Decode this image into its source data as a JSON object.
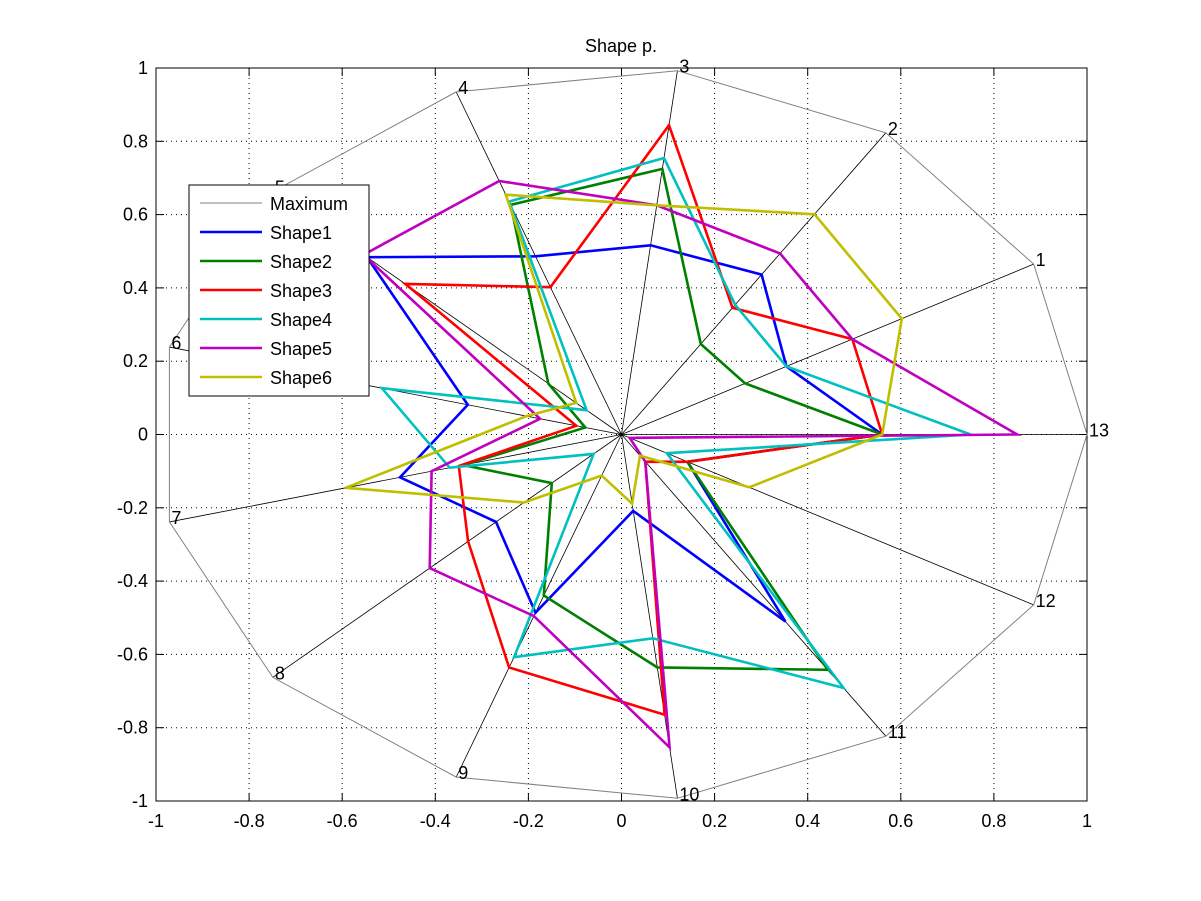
{
  "chart_data": {
    "type": "radar",
    "title": "Shape p.",
    "xlim": [
      -1,
      1
    ],
    "ylim": [
      -1,
      1
    ],
    "x_ticks": [
      "-1",
      "-0.8",
      "-0.6",
      "-0.4",
      "-0.2",
      "0",
      "0.2",
      "0.4",
      "0.6",
      "0.8",
      "1"
    ],
    "y_ticks": [
      "1",
      "0.8",
      "0.6",
      "0.4",
      "0.2",
      "0",
      "-0.2",
      "-0.4",
      "-0.6",
      "-0.8",
      "-1"
    ],
    "grid": true,
    "legend_position": "upper-left",
    "spokes": [
      {
        "label": "1",
        "angle_deg": 27.7
      },
      {
        "label": "2",
        "angle_deg": 55.4
      },
      {
        "label": "3",
        "angle_deg": 83.1
      },
      {
        "label": "4",
        "angle_deg": 110.8
      },
      {
        "label": "5",
        "angle_deg": 138.5
      },
      {
        "label": "6",
        "angle_deg": 166.2
      },
      {
        "label": "7",
        "angle_deg": 193.8
      },
      {
        "label": "8",
        "angle_deg": 221.5
      },
      {
        "label": "9",
        "angle_deg": 249.2
      },
      {
        "label": "10",
        "angle_deg": 276.9
      },
      {
        "label": "11",
        "angle_deg": 304.6
      },
      {
        "label": "12",
        "angle_deg": 332.3
      },
      {
        "label": "13",
        "angle_deg": 0
      }
    ],
    "series": [
      {
        "name": "Maximum",
        "color": "#808080",
        "values": [
          1,
          1,
          1,
          1,
          1,
          1,
          1,
          1,
          1,
          1,
          1,
          1,
          1
        ]
      },
      {
        "name": "Shape1",
        "color": "#0000ff",
        "values": [
          0.4,
          0.53,
          0.52,
          0.52,
          0.73,
          0.34,
          0.49,
          0.36,
          0.52,
          0.21,
          0.62,
          0.16,
          0.56
        ]
      },
      {
        "name": "Shape2",
        "color": "#008000",
        "values": [
          0.3,
          0.3,
          0.73,
          0.67,
          0.21,
          0.08,
          0.35,
          0.2,
          0.47,
          0.64,
          0.78,
          0.16,
          0.56
        ]
      },
      {
        "name": "Shape3",
        "color": "#ff0000",
        "values": [
          0.56,
          0.42,
          0.85,
          0.43,
          0.62,
          0.1,
          0.36,
          0.44,
          0.68,
          0.77,
          0.09,
          0.16,
          0.56
        ]
      },
      {
        "name": "Shape4",
        "color": "#00c0c0",
        "values": [
          0.4,
          0.43,
          0.76,
          0.68,
          0.1,
          0.53,
          0.38,
          0.08,
          0.65,
          0.56,
          0.84,
          0.11,
          0.75
        ]
      },
      {
        "name": "Shape5",
        "color": "#bf00bf",
        "values": [
          0.56,
          0.6,
          0.63,
          0.74,
          0.74,
          0.18,
          0.42,
          0.55,
          0.53,
          0.86,
          0.09,
          0.02,
          0.85
        ]
      },
      {
        "name": "Shape6",
        "color": "#bfbf00",
        "values": [
          0.68,
          0.73,
          0.63,
          0.7,
          0.13,
          0.21,
          0.61,
          0.28,
          0.12,
          0.19,
          0.07,
          0.31,
          0.56
        ]
      }
    ]
  }
}
